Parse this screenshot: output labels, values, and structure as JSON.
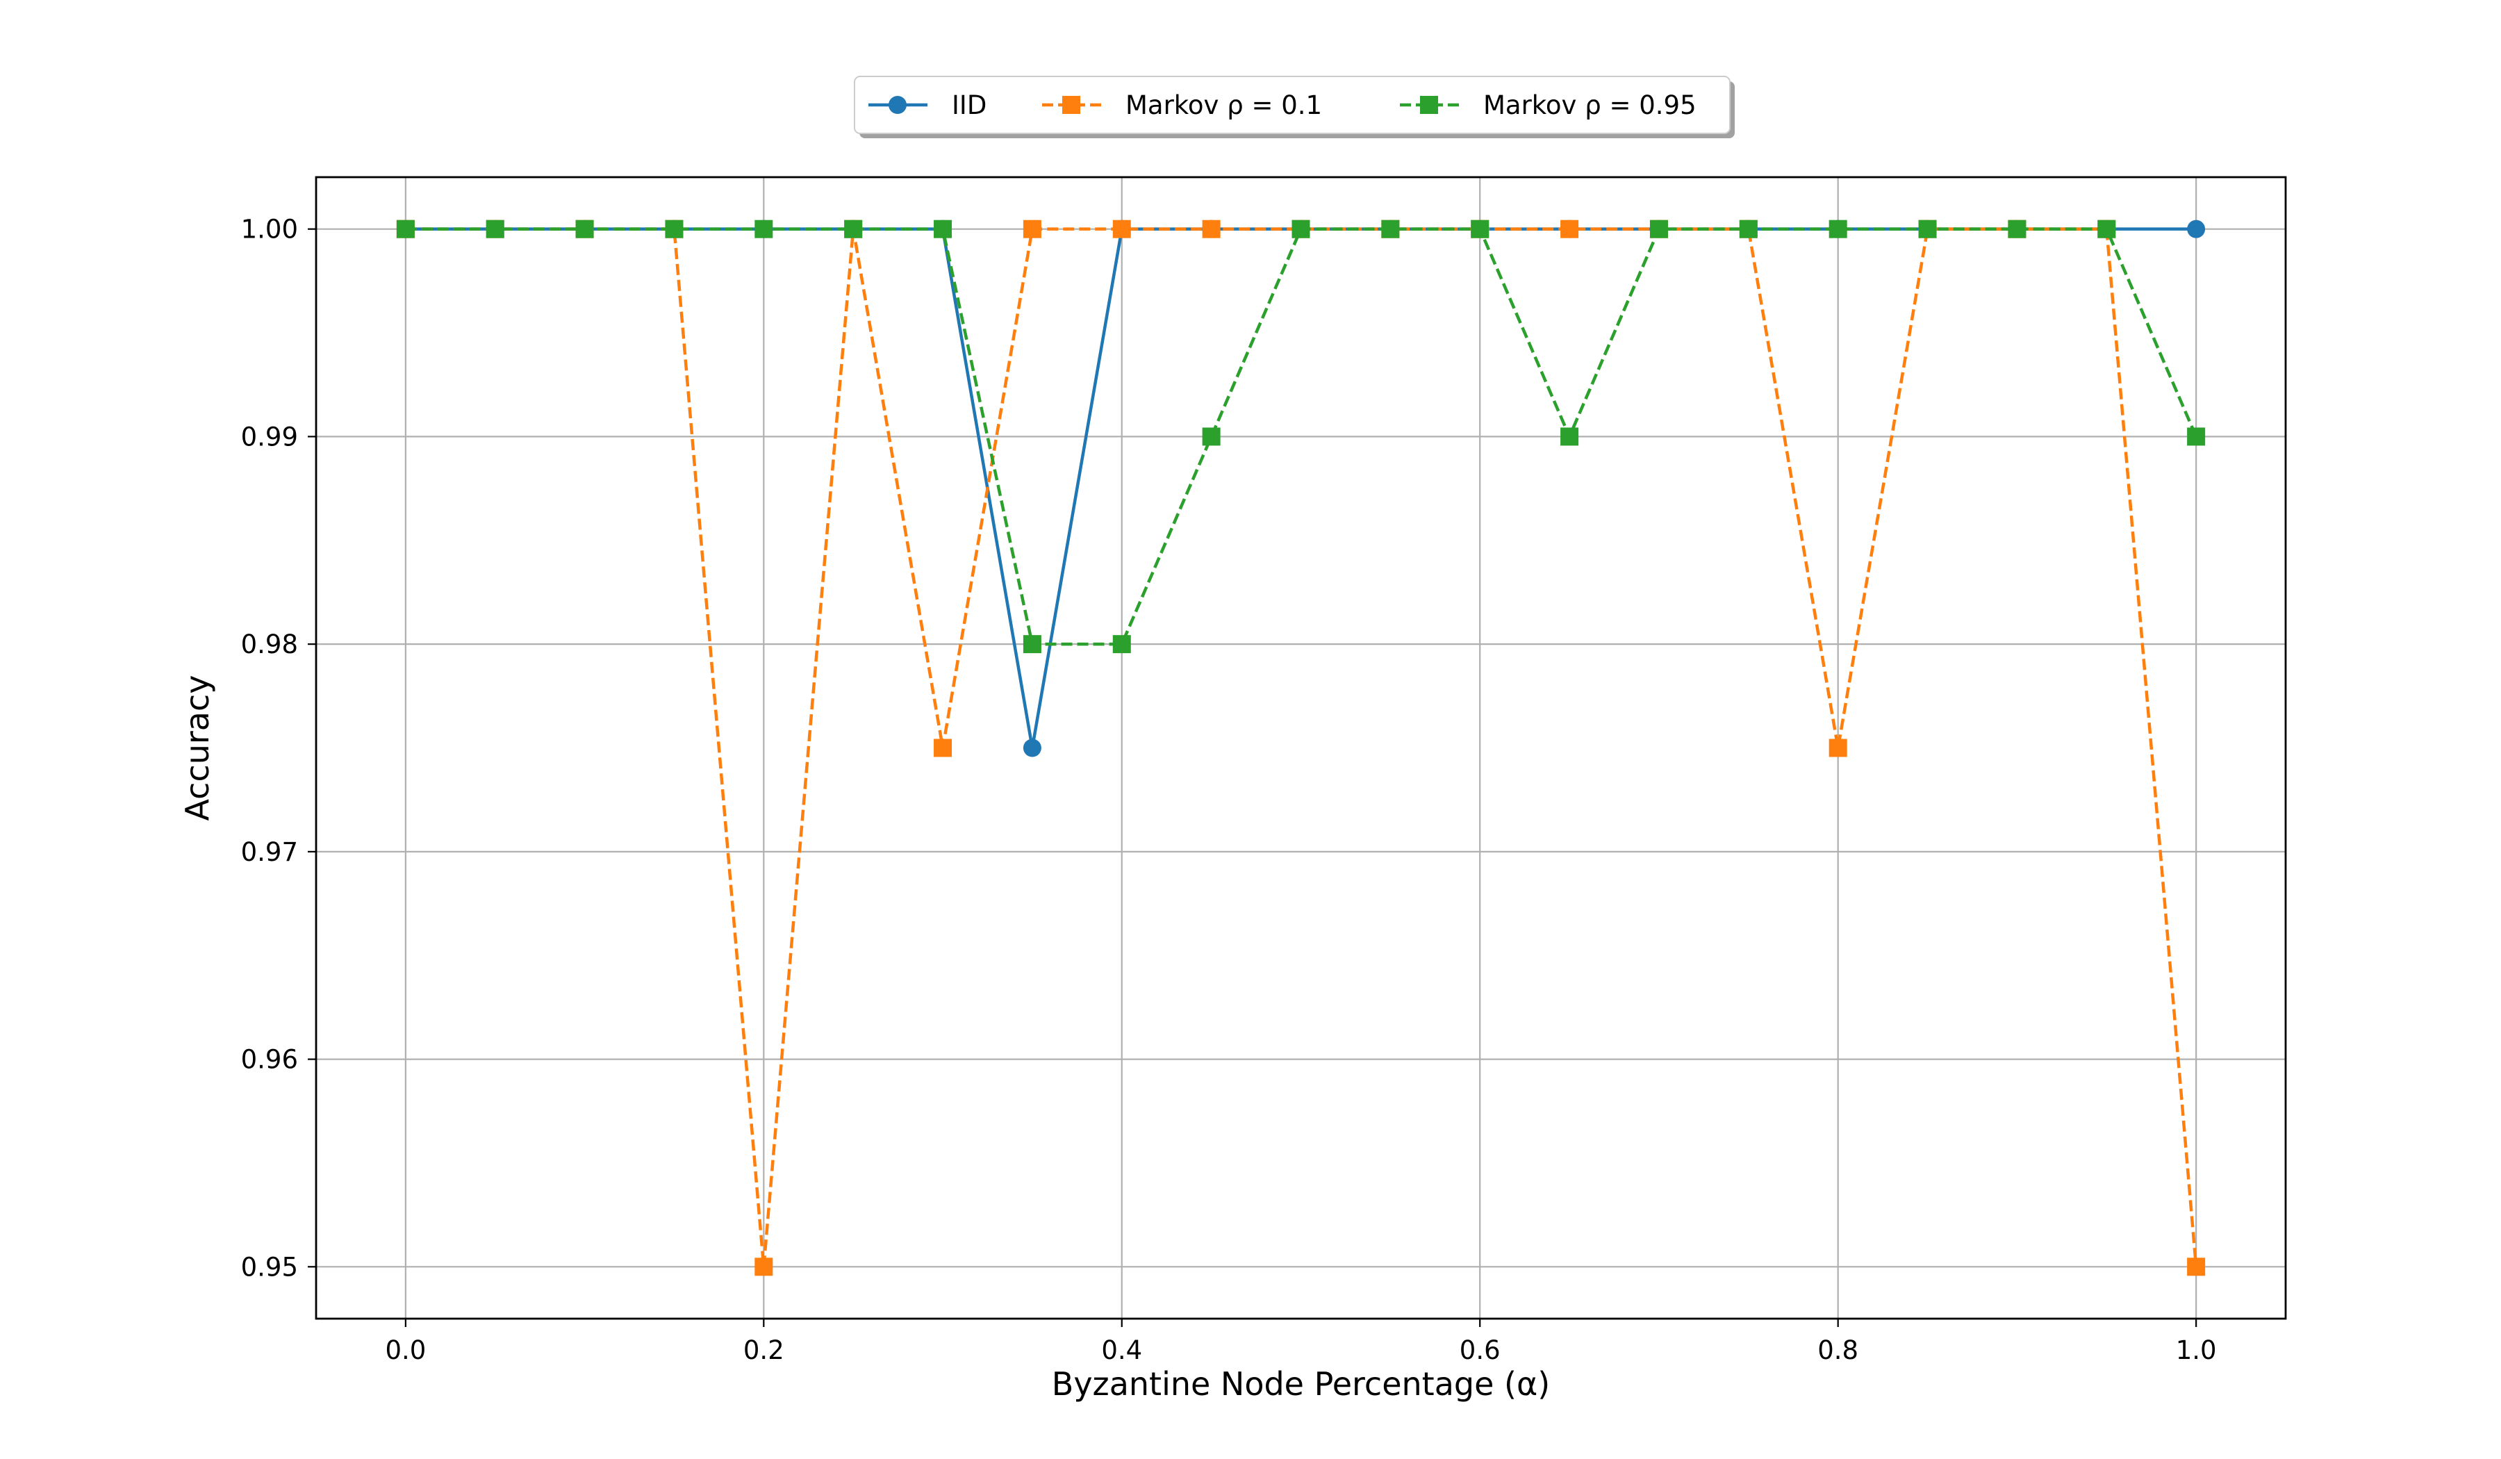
{
  "chart_data": {
    "type": "line",
    "title": "",
    "xlabel": "Byzantine Node Percentage (α)",
    "ylabel": "Accuracy",
    "xlim": [
      -0.05,
      1.05
    ],
    "ylim": [
      0.9475,
      1.0025
    ],
    "x_ticks": [
      0.0,
      0.2,
      0.4,
      0.6,
      0.8,
      1.0
    ],
    "x_tick_labels": [
      "0.0",
      "0.2",
      "0.4",
      "0.6",
      "0.8",
      "1.0"
    ],
    "y_ticks": [
      0.95,
      0.96,
      0.97,
      0.98,
      0.99,
      1.0
    ],
    "y_tick_labels": [
      "0.95",
      "0.96",
      "0.97",
      "0.98",
      "0.99",
      "1.00"
    ],
    "grid": true,
    "legend_position": "top-center",
    "x": [
      0.0,
      0.05,
      0.1,
      0.15,
      0.2,
      0.25,
      0.3,
      0.35,
      0.4,
      0.45,
      0.5,
      0.55,
      0.6,
      0.65,
      0.7,
      0.75,
      0.8,
      0.85,
      0.9,
      0.95,
      1.0
    ],
    "series": [
      {
        "name": "IID",
        "color": "#1f77b4",
        "marker": "circle",
        "linestyle": "solid",
        "values": [
          1.0,
          1.0,
          1.0,
          1.0,
          1.0,
          1.0,
          1.0,
          0.975,
          1.0,
          1.0,
          1.0,
          1.0,
          1.0,
          1.0,
          1.0,
          1.0,
          1.0,
          1.0,
          1.0,
          1.0,
          1.0
        ]
      },
      {
        "name": "Markov ρ = 0.1",
        "color": "#ff7f0e",
        "marker": "square",
        "linestyle": "dashed",
        "values": [
          1.0,
          1.0,
          1.0,
          1.0,
          0.95,
          1.0,
          0.975,
          1.0,
          1.0,
          1.0,
          1.0,
          1.0,
          1.0,
          1.0,
          1.0,
          1.0,
          0.975,
          1.0,
          1.0,
          1.0,
          0.95
        ]
      },
      {
        "name": "Markov ρ = 0.95",
        "color": "#2ca02c",
        "marker": "square",
        "linestyle": "dashed",
        "values": [
          1.0,
          1.0,
          1.0,
          1.0,
          1.0,
          1.0,
          1.0,
          0.98,
          0.98,
          0.99,
          1.0,
          1.0,
          1.0,
          0.99,
          1.0,
          1.0,
          1.0,
          1.0,
          1.0,
          1.0,
          0.99
        ]
      }
    ]
  }
}
